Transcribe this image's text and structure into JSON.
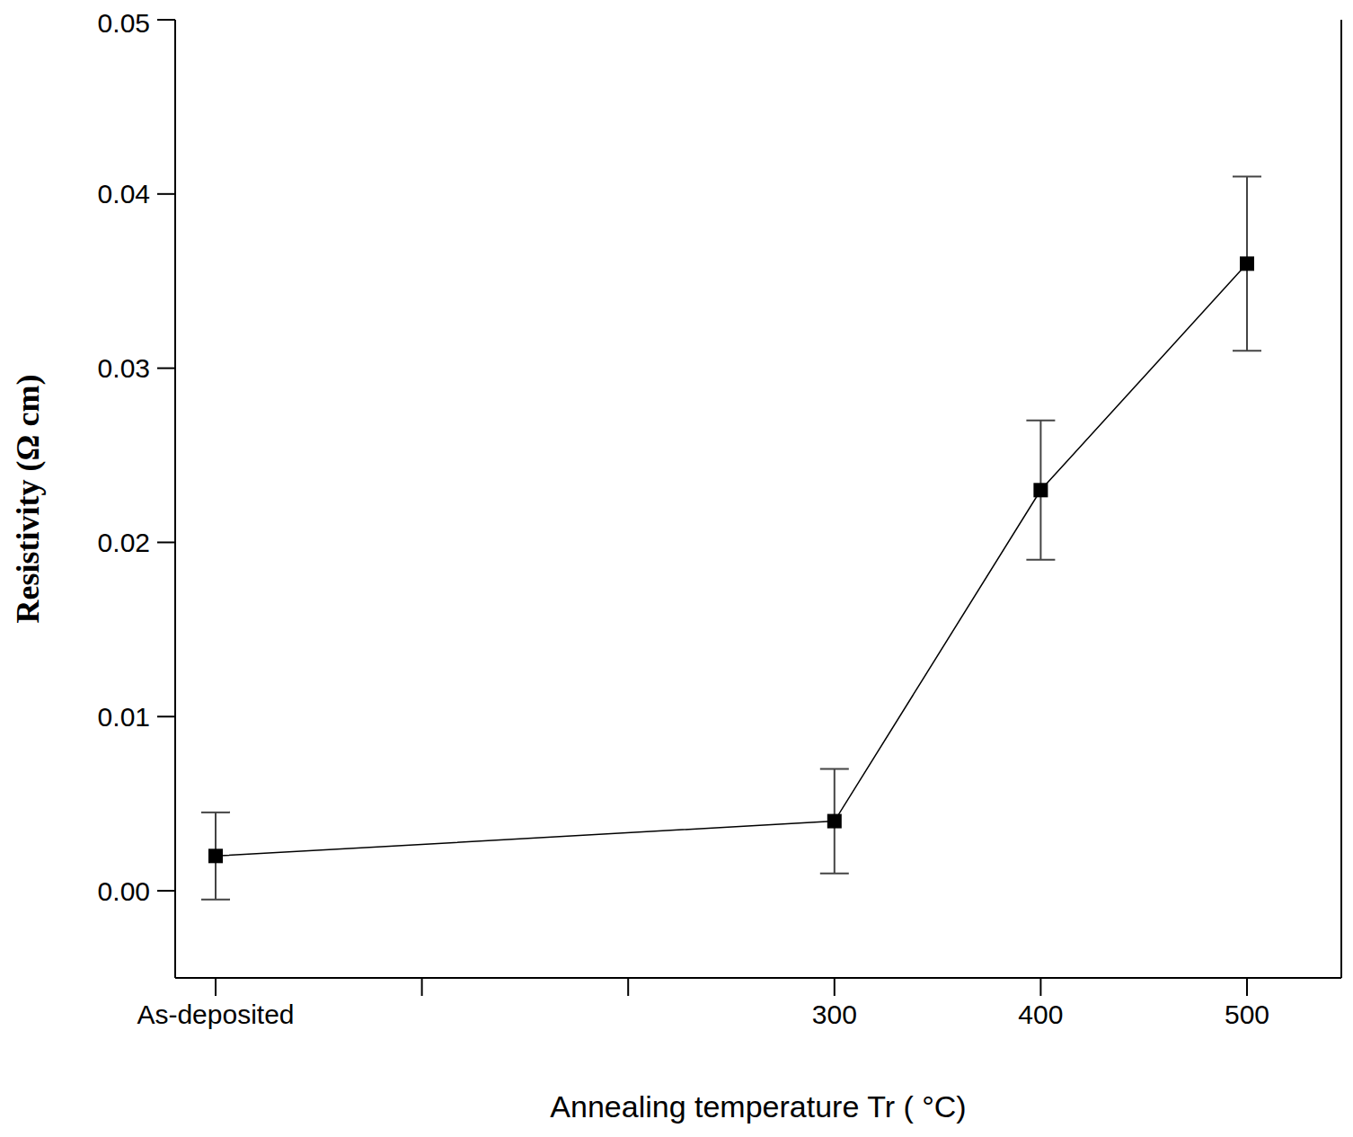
{
  "chart_data": {
    "type": "line",
    "categories": [
      "As-deposited",
      null,
      null,
      "300",
      "400",
      "500"
    ],
    "values": [
      0.002,
      null,
      null,
      0.004,
      0.023,
      0.036
    ],
    "errors": [
      0.0025,
      null,
      null,
      0.003,
      0.004,
      0.005
    ],
    "x_label": "Annealing temperature Tr ( °C)",
    "y_label": "Resistivity (Ω cm)",
    "ylim": [
      -0.005,
      0.05
    ],
    "yticks": [
      {
        "value": 0,
        "label": "0.00"
      },
      0.01,
      0.02,
      0.03,
      0.04,
      0.05
    ],
    "color": "#000000",
    "marker": "square",
    "line_style": "solid",
    "grid": false
  }
}
